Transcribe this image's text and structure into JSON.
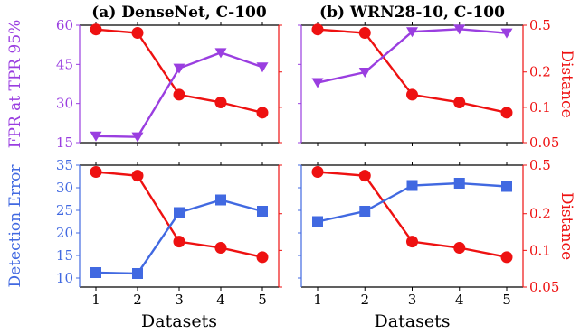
{
  "chart_data": [
    {
      "type": "line",
      "title": "(a) DenseNet, C-100",
      "xlabel": "",
      "ylabel_left": "FPR at TPR 95%",
      "ylabel_right": "Distance",
      "x": [
        1,
        2,
        3,
        4,
        5
      ],
      "x_ticks": [
        "1",
        "2",
        "3",
        "4",
        "5"
      ],
      "ylim_left": [
        15,
        60
      ],
      "yticks_left": [
        "15",
        "30",
        "45",
        "60"
      ],
      "ylim_right": [
        0.05,
        0.5
      ],
      "yscale_right": "log",
      "yticks_right": [
        "",
        "",
        "",
        ""
      ],
      "series": [
        {
          "axis": "left",
          "marker": "triangle-down",
          "color": "#9a3ee0",
          "values": [
            17.5,
            17.2,
            43.5,
            49.5,
            44
          ]
        },
        {
          "axis": "right",
          "marker": "circle",
          "color": "#ee1111",
          "values": [
            0.46,
            0.43,
            0.128,
            0.11,
            0.09
          ]
        }
      ],
      "grid": false
    },
    {
      "type": "line",
      "title": "(b) WRN28-10, C-100",
      "xlabel": "",
      "ylabel_left": "",
      "ylabel_right": "Distance",
      "x": [
        1,
        2,
        3,
        4,
        5
      ],
      "x_ticks": [
        "1",
        "2",
        "3",
        "4",
        "5"
      ],
      "ylim_left": [
        15,
        60
      ],
      "yticks_left": [
        "",
        "",
        "",
        ""
      ],
      "ylim_right": [
        0.05,
        0.5
      ],
      "yscale_right": "log",
      "yticks_right": [
        "0.5",
        "0.2",
        "0.1",
        "0.05"
      ],
      "series": [
        {
          "axis": "left",
          "marker": "triangle-down",
          "color": "#9a3ee0",
          "values": [
            38,
            42,
            57.5,
            58.5,
            57
          ]
        },
        {
          "axis": "right",
          "marker": "circle",
          "color": "#ee1111",
          "values": [
            0.46,
            0.43,
            0.128,
            0.11,
            0.09
          ]
        }
      ],
      "grid": false
    },
    {
      "type": "line",
      "title": "",
      "xlabel": "Datasets",
      "ylabel_left": "Detection Error",
      "ylabel_right": "",
      "x": [
        1,
        2,
        3,
        4,
        5
      ],
      "x_ticks": [
        "1",
        "2",
        "3",
        "4",
        "5"
      ],
      "ylim_left": [
        8,
        35
      ],
      "yticks_left": [
        "10",
        "15",
        "20",
        "25",
        "30",
        "35"
      ],
      "ylim_right": [
        0.05,
        0.5
      ],
      "yscale_right": "log",
      "yticks_right": [
        "",
        "",
        "",
        ""
      ],
      "series": [
        {
          "axis": "left",
          "marker": "square",
          "color": "#4169e1",
          "values": [
            11.2,
            11,
            24.5,
            27.3,
            24.8
          ]
        },
        {
          "axis": "right",
          "marker": "circle",
          "color": "#ee1111",
          "values": [
            0.44,
            0.41,
            0.118,
            0.105,
            0.088
          ]
        }
      ],
      "grid": false
    },
    {
      "type": "line",
      "title": "",
      "xlabel": "Datasets",
      "ylabel_left": "",
      "ylabel_right": "Distance",
      "x": [
        1,
        2,
        3,
        4,
        5
      ],
      "x_ticks": [
        "1",
        "2",
        "3",
        "4",
        "5"
      ],
      "ylim_left": [
        8,
        35
      ],
      "yticks_left": [
        "",
        "",
        "",
        "",
        "",
        ""
      ],
      "ylim_right": [
        0.05,
        0.5
      ],
      "yscale_right": "log",
      "yticks_right": [
        "0.5",
        "0.2",
        "0.1",
        "0.05"
      ],
      "series": [
        {
          "axis": "left",
          "marker": "square",
          "color": "#4169e1",
          "values": [
            22.5,
            24.8,
            30.5,
            31,
            30.3
          ]
        },
        {
          "axis": "right",
          "marker": "circle",
          "color": "#ee1111",
          "values": [
            0.44,
            0.41,
            0.118,
            0.105,
            0.088
          ]
        }
      ],
      "grid": false
    }
  ],
  "colors": {
    "purple": "#9a3ee0",
    "red": "#ee1111",
    "blue": "#4169e1",
    "axis": "#000000"
  }
}
